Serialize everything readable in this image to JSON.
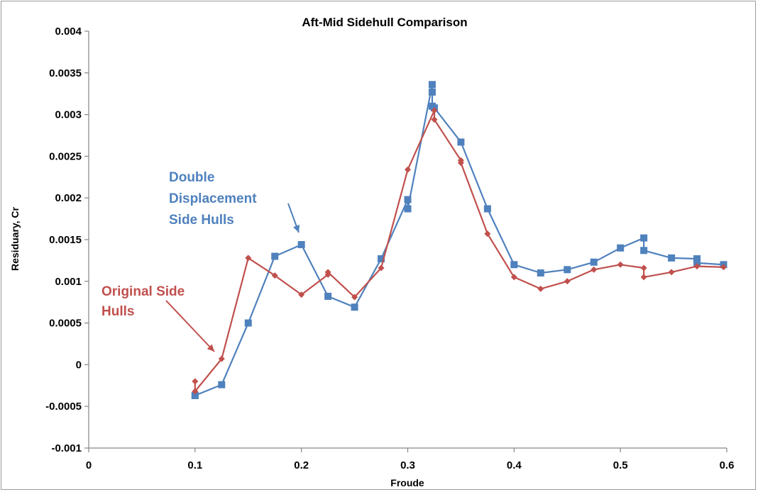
{
  "chart_data": {
    "type": "line",
    "title": "Aft-Mid Sidehull Comparison",
    "xlabel": "Froude",
    "ylabel": "Residuary, Cr",
    "xlim": [
      0,
      0.6
    ],
    "ylim": [
      -0.001,
      0.004
    ],
    "x_ticks": [
      "0",
      "0.1",
      "0.2",
      "0.3",
      "0.4",
      "0.5",
      "0.6"
    ],
    "y_ticks": [
      "-0.001",
      "-0.0005",
      "0",
      "0.0005",
      "0.001",
      "0.0015",
      "0.002",
      "0.0025",
      "0.003",
      "0.0035",
      "0.004"
    ],
    "grid": false,
    "legend": "none",
    "series": [
      {
        "color": "#4f81bd",
        "marker": "square",
        "x": [
          0.1,
          0.1,
          0.125,
          0.15,
          0.175,
          0.2,
          0.225,
          0.25,
          0.275,
          0.3,
          0.3,
          0.323,
          0.323,
          0.323,
          0.325,
          0.35,
          0.375,
          0.4,
          0.425,
          0.45,
          0.475,
          0.5,
          0.522,
          0.522,
          0.548,
          0.572,
          0.572,
          0.597
        ],
        "y": [
          -0.00037,
          -0.00037,
          -0.00024,
          0.0005,
          0.0013,
          0.00144,
          0.00082,
          0.00069,
          0.00127,
          0.00198,
          0.00187,
          0.00336,
          0.00327,
          0.0031,
          0.00308,
          0.00267,
          0.00187,
          0.0012,
          0.0011,
          0.00114,
          0.00123,
          0.0014,
          0.00152,
          0.00137,
          0.00128,
          0.00127,
          0.00122,
          0.0012
        ]
      },
      {
        "color": "#c0504d",
        "marker": "diamond",
        "x": [
          0.1,
          0.1,
          0.125,
          0.15,
          0.175,
          0.2,
          0.225,
          0.225,
          0.25,
          0.275,
          0.3,
          0.325,
          0.325,
          0.35,
          0.35,
          0.375,
          0.4,
          0.425,
          0.45,
          0.475,
          0.5,
          0.522,
          0.522,
          0.548,
          0.572,
          0.597
        ],
        "y": [
          -0.0002,
          -0.00032,
          7e-05,
          0.00128,
          0.00107,
          0.00084,
          0.00108,
          0.00111,
          0.00081,
          0.00116,
          0.00234,
          0.00305,
          0.00294,
          0.00245,
          0.00242,
          0.00157,
          0.00105,
          0.00091,
          0.001,
          0.00114,
          0.0012,
          0.00116,
          0.00105,
          0.00111,
          0.00118,
          0.00117
        ]
      }
    ],
    "annotations": [
      {
        "lines": [
          "Double",
          "Displacement",
          "Side Hulls"
        ],
        "color": "#4f81bd"
      },
      {
        "lines": [
          "Original Side",
          "Hulls"
        ],
        "color": "#c0504d"
      }
    ]
  }
}
